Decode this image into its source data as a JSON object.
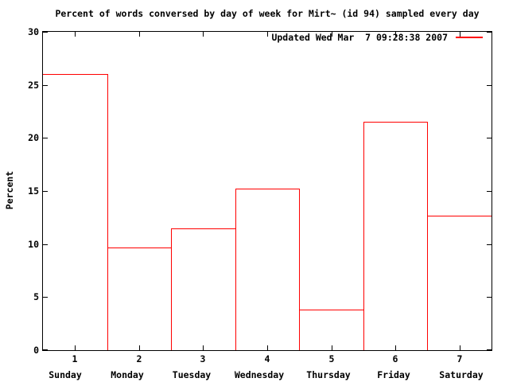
{
  "title": "Percent of words conversed by day of week for Mirt~ (id 94) sampled every day",
  "legend": {
    "label": "Updated Wed Mar  7 09:28:38 2007"
  },
  "colors": {
    "series": "#ff0000",
    "axis": "#000000",
    "background": "#ffffff",
    "bar_fill": "#ffffff"
  },
  "y_axis": {
    "label": "Percent",
    "tick_labels": [
      "0",
      "5",
      "10",
      "15",
      "20",
      "25",
      "30"
    ]
  },
  "x_axis": {
    "tick_labels": [
      "1",
      "2",
      "3",
      "4",
      "5",
      "6",
      "7"
    ],
    "category_labels": [
      "Sunday",
      "Monday",
      "Tuesday",
      "Wednesday",
      "Thursday",
      "Friday",
      "Saturday"
    ]
  },
  "chart_data": {
    "type": "bar",
    "title": "Percent of words conversed by day of week for Mirt~ (id 94) sampled every day",
    "x": [
      1,
      2,
      3,
      4,
      5,
      6,
      7
    ],
    "categories": [
      "Sunday",
      "Monday",
      "Tuesday",
      "Wednesday",
      "Thursday",
      "Friday",
      "Saturday"
    ],
    "values": [
      26.0,
      9.65,
      11.45,
      15.25,
      3.85,
      21.55,
      12.65
    ],
    "xlabel": "",
    "ylabel": "Percent",
    "ylim": [
      0,
      30
    ],
    "ytick_step": 5,
    "bar_outline": "#ff0000",
    "bar_fill": "#ffffff",
    "legend_entries": [
      "Updated Wed Mar  7 09:28:38 2007"
    ],
    "legend_position": "top-right-inside",
    "grid": false
  }
}
